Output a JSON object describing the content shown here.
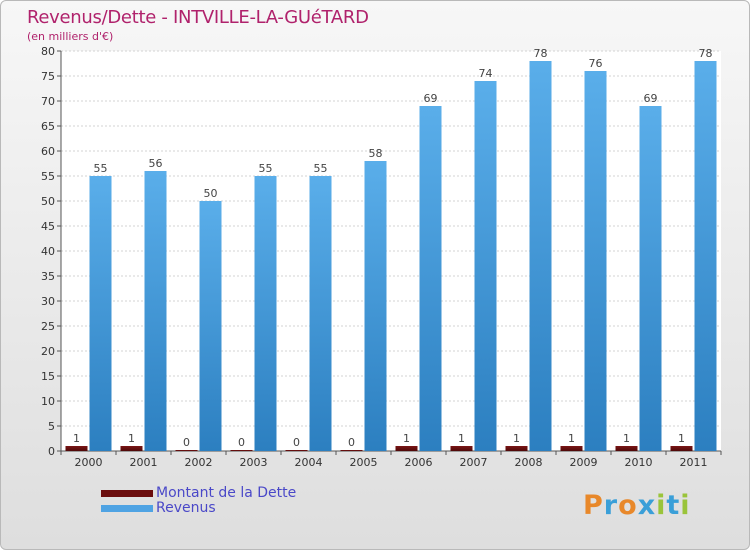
{
  "header": {
    "title": "Revenus/Dette - INTVILLE-LA-GUéTARD",
    "subtitle": "(en milliers d'€)"
  },
  "logo": {
    "text": "Proxiti",
    "colors": [
      "#e8882a",
      "#3a9fd8",
      "#e8882a",
      "#3a9fd8",
      "#9ac43a",
      "#3a9fd8",
      "#9ac43a"
    ]
  },
  "chart_data": {
    "type": "bar",
    "categories": [
      "2000",
      "2001",
      "2002",
      "2003",
      "2004",
      "2005",
      "2006",
      "2007",
      "2008",
      "2009",
      "2010",
      "2011"
    ],
    "series": [
      {
        "name": "Montant de la Dette",
        "color": "#6b0d0d",
        "values": [
          1,
          1,
          0,
          0,
          0,
          0,
          1,
          1,
          1,
          1,
          1,
          1
        ]
      },
      {
        "name": "Revenus",
        "color": "#4fa3e3",
        "values": [
          55,
          56,
          50,
          55,
          55,
          58,
          69,
          74,
          78,
          76,
          69,
          78
        ]
      }
    ],
    "ylim": [
      0,
      80
    ],
    "ytick_step": 5,
    "grid": true,
    "legend": "bottom-left"
  }
}
